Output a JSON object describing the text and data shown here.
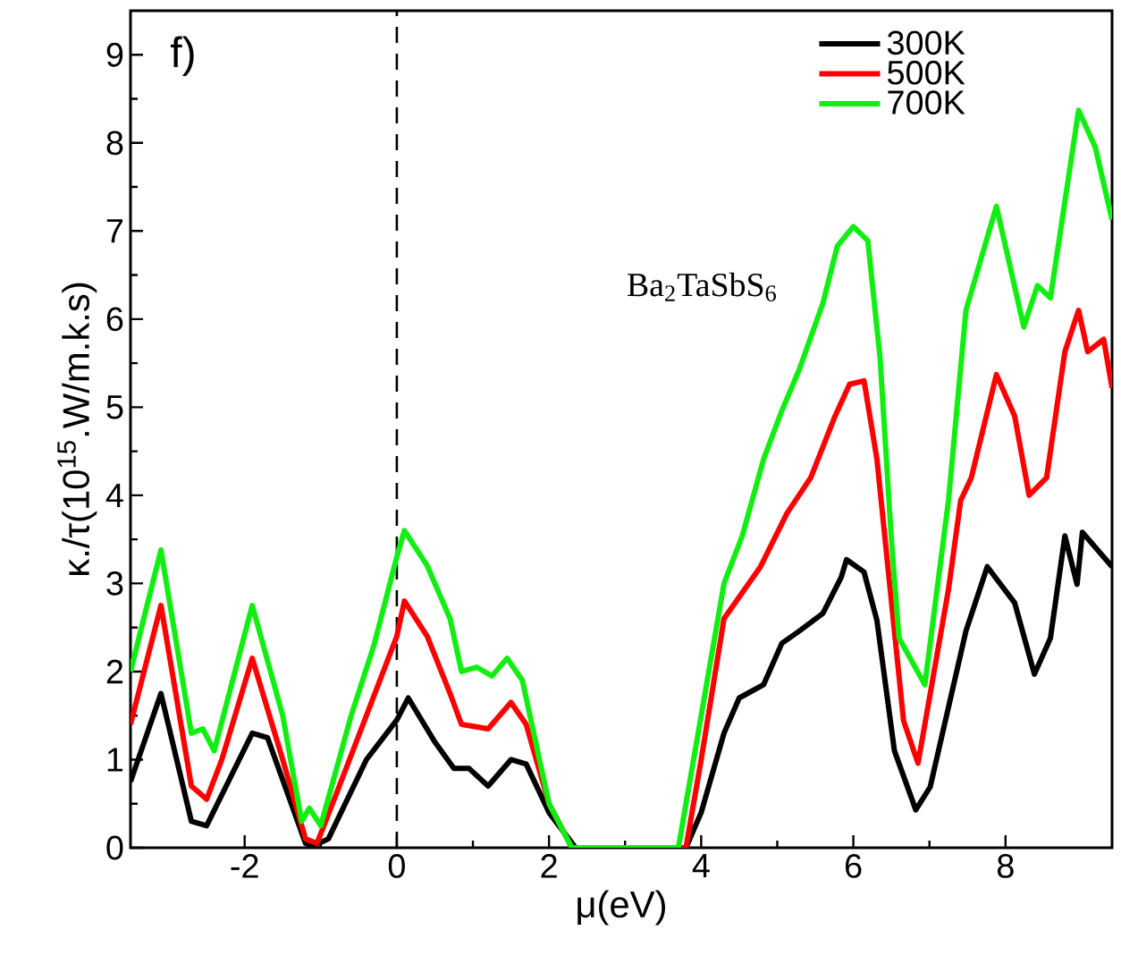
{
  "chart_data": {
    "type": "line",
    "xlabel": "μ(eV)",
    "ylabel": "κ./τ(10$^{15}$.W/m.k.s)",
    "annotations": [
      "f)",
      "Ba$_{2}$TaSbS$_{6}$"
    ],
    "xlim": [
      -3.5,
      9.4
    ],
    "ylim": [
      0,
      9.5
    ],
    "xticks": [
      -2,
      0,
      2,
      4,
      6,
      8
    ],
    "yticks": [
      0,
      1,
      2,
      3,
      4,
      5,
      6,
      7,
      8,
      9
    ],
    "legend": "top right",
    "grid": false,
    "marker": "none",
    "line_style": "solid",
    "ref_lines": [
      {
        "axis": "x",
        "value": 0,
        "color": "#000000",
        "line_style": "dashed"
      }
    ],
    "series": [
      {
        "name": "300K",
        "color": "#000000",
        "x": [
          -3.5,
          -3.1,
          -2.7,
          -2.5,
          -2.3,
          -1.9,
          -1.7,
          -1.2,
          -1.1,
          -0.9,
          -0.4,
          0,
          0.15,
          0.5,
          0.75,
          0.95,
          1.2,
          1.5,
          1.7,
          2.0,
          2.35,
          3.8,
          4.0,
          4.3,
          4.5,
          4.82,
          5.06,
          5.29,
          5.6,
          5.84,
          5.91,
          6.14,
          6.31,
          6.54,
          6.82,
          7.01,
          7.48,
          7.76,
          8.12,
          8.38,
          8.59,
          8.78,
          8.94,
          9.01,
          9.2,
          9.4
        ],
        "values": [
          0.75,
          1.75,
          0.3,
          0.25,
          0.6,
          1.3,
          1.25,
          0.05,
          0.02,
          0.1,
          1.0,
          1.45,
          1.7,
          1.2,
          0.9,
          0.9,
          0.7,
          1.0,
          0.95,
          0.4,
          0,
          0,
          0.4,
          1.3,
          1.7,
          1.85,
          2.32,
          2.46,
          2.66,
          3.07,
          3.27,
          3.13,
          2.58,
          1.1,
          0.43,
          0.69,
          2.46,
          3.19,
          2.78,
          1.97,
          2.38,
          3.54,
          2.99,
          3.58,
          3.39,
          3.19
        ]
      },
      {
        "name": "500K",
        "color": "#ff0000",
        "x": [
          -3.5,
          -3.1,
          -2.7,
          -2.5,
          -2.3,
          -1.9,
          -1.5,
          -1.2,
          -1.05,
          -0.8,
          -0.4,
          0,
          0.1,
          0.4,
          0.7,
          0.85,
          1.2,
          1.5,
          1.7,
          2.0,
          2.3,
          3.8,
          4.0,
          4.3,
          4.78,
          5.13,
          5.44,
          5.76,
          5.95,
          6.14,
          6.31,
          6.66,
          6.85,
          7.25,
          7.41,
          7.55,
          7.88,
          8.12,
          8.31,
          8.54,
          8.78,
          8.96,
          9.08,
          9.29,
          9.4
        ],
        "values": [
          1.4,
          2.75,
          0.7,
          0.55,
          1.0,
          2.15,
          1.0,
          0.1,
          0.05,
          0.6,
          1.5,
          2.4,
          2.8,
          2.4,
          1.75,
          1.4,
          1.35,
          1.65,
          1.4,
          0.5,
          0,
          0,
          1.0,
          2.6,
          3.19,
          3.8,
          4.2,
          4.9,
          5.26,
          5.3,
          4.41,
          1.44,
          0.96,
          2.93,
          3.94,
          4.2,
          5.37,
          4.9,
          4.0,
          4.2,
          5.63,
          6.1,
          5.63,
          5.77,
          5.22
        ]
      },
      {
        "name": "700K",
        "color": "#11ee11",
        "x": [
          -3.5,
          -3.1,
          -2.7,
          -2.55,
          -2.4,
          -1.9,
          -1.5,
          -1.25,
          -1.15,
          -1.0,
          -0.6,
          -0.3,
          0,
          0.1,
          0.4,
          0.7,
          0.85,
          1.05,
          1.25,
          1.45,
          1.65,
          2.0,
          2.3,
          3.7,
          4.0,
          4.3,
          4.54,
          4.82,
          5.06,
          5.29,
          5.6,
          5.79,
          6.0,
          6.19,
          6.35,
          6.5,
          6.6,
          6.94,
          7.25,
          7.48,
          7.88,
          8.24,
          8.42,
          8.59,
          8.96,
          9.18,
          9.4
        ],
        "values": [
          2.0,
          3.38,
          1.3,
          1.35,
          1.1,
          2.75,
          1.5,
          0.3,
          0.45,
          0.25,
          1.5,
          2.3,
          3.3,
          3.6,
          3.2,
          2.6,
          2.0,
          2.05,
          1.95,
          2.15,
          1.9,
          0.5,
          0,
          0,
          1.5,
          3.0,
          3.54,
          4.41,
          4.96,
          5.43,
          6.18,
          6.83,
          7.05,
          6.89,
          5.57,
          3.5,
          2.38,
          1.85,
          3.94,
          6.1,
          7.28,
          5.91,
          6.38,
          6.24,
          8.37,
          7.95,
          7.13
        ]
      }
    ]
  }
}
